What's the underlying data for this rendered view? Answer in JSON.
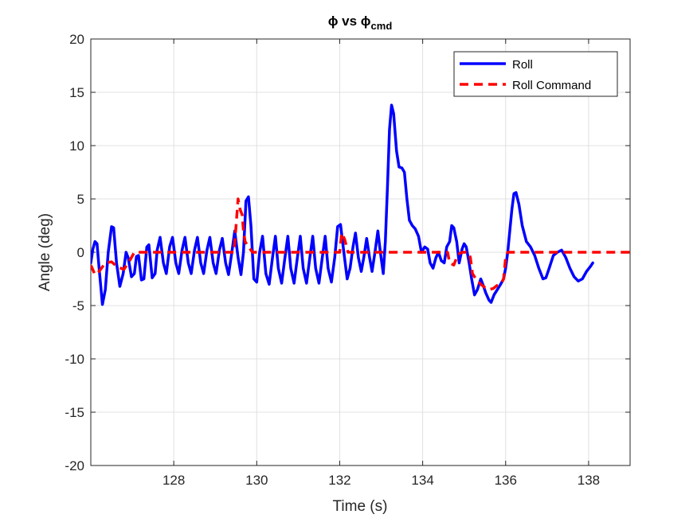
{
  "chart_data": {
    "type": "line",
    "title": "ϕ vs ϕ",
    "title_sub": "cmd",
    "xlabel": "Time (s)",
    "ylabel": "Angle (deg)",
    "xlim": [
      126,
      139
    ],
    "ylim": [
      -20,
      20
    ],
    "xticks": [
      128,
      130,
      132,
      134,
      136,
      138
    ],
    "yticks": [
      -20,
      -15,
      -10,
      -5,
      0,
      5,
      10,
      15,
      20
    ],
    "grid": true,
    "legend_position": "top-right",
    "series": [
      {
        "name": "Roll",
        "color": "#0000ff",
        "style": "solid",
        "points": [
          [
            126.0,
            -1.0
          ],
          [
            126.05,
            0.3
          ],
          [
            126.1,
            1.0
          ],
          [
            126.15,
            0.8
          ],
          [
            126.2,
            -1.5
          ],
          [
            126.28,
            -4.9
          ],
          [
            126.35,
            -3.5
          ],
          [
            126.42,
            0.0
          ],
          [
            126.5,
            2.4
          ],
          [
            126.55,
            2.3
          ],
          [
            126.62,
            -1.0
          ],
          [
            126.7,
            -3.2
          ],
          [
            126.78,
            -2.0
          ],
          [
            126.85,
            0.0
          ],
          [
            126.9,
            -0.5
          ],
          [
            126.98,
            -2.3
          ],
          [
            127.05,
            -2.0
          ],
          [
            127.1,
            -0.4
          ],
          [
            127.15,
            -0.3
          ],
          [
            127.22,
            -2.6
          ],
          [
            127.28,
            -2.5
          ],
          [
            127.35,
            0.5
          ],
          [
            127.4,
            0.7
          ],
          [
            127.48,
            -2.4
          ],
          [
            127.55,
            -2.0
          ],
          [
            127.6,
            0.2
          ],
          [
            127.67,
            1.4
          ],
          [
            127.75,
            -1.0
          ],
          [
            127.82,
            -2.0
          ],
          [
            127.9,
            0.5
          ],
          [
            127.97,
            1.4
          ],
          [
            128.05,
            -1.0
          ],
          [
            128.12,
            -2.0
          ],
          [
            128.2,
            0.2
          ],
          [
            128.27,
            1.4
          ],
          [
            128.35,
            -1.0
          ],
          [
            128.42,
            -2.0
          ],
          [
            128.5,
            0.2
          ],
          [
            128.57,
            1.4
          ],
          [
            128.65,
            -1.0
          ],
          [
            128.72,
            -2.0
          ],
          [
            128.8,
            0.2
          ],
          [
            128.87,
            1.4
          ],
          [
            128.95,
            -1.0
          ],
          [
            129.02,
            -2.0
          ],
          [
            129.1,
            0.2
          ],
          [
            129.17,
            1.3
          ],
          [
            129.25,
            -1.0
          ],
          [
            129.32,
            -2.1
          ],
          [
            129.4,
            0.0
          ],
          [
            129.47,
            2.0
          ],
          [
            129.55,
            -0.5
          ],
          [
            129.62,
            -2.1
          ],
          [
            129.68,
            0.0
          ],
          [
            129.74,
            4.8
          ],
          [
            129.8,
            5.2
          ],
          [
            129.86,
            2.5
          ],
          [
            129.93,
            -2.5
          ],
          [
            130.0,
            -2.8
          ],
          [
            130.07,
            0.0
          ],
          [
            130.14,
            1.5
          ],
          [
            130.22,
            -2.0
          ],
          [
            130.3,
            -3.0
          ],
          [
            130.38,
            -0.5
          ],
          [
            130.45,
            1.5
          ],
          [
            130.52,
            -1.5
          ],
          [
            130.6,
            -2.9
          ],
          [
            130.68,
            -0.5
          ],
          [
            130.75,
            1.5
          ],
          [
            130.82,
            -1.5
          ],
          [
            130.9,
            -2.9
          ],
          [
            130.98,
            -0.5
          ],
          [
            131.05,
            1.5
          ],
          [
            131.12,
            -1.5
          ],
          [
            131.2,
            -2.9
          ],
          [
            131.28,
            -0.5
          ],
          [
            131.35,
            1.5
          ],
          [
            131.42,
            -1.5
          ],
          [
            131.5,
            -2.9
          ],
          [
            131.58,
            -0.5
          ],
          [
            131.65,
            1.5
          ],
          [
            131.72,
            -1.5
          ],
          [
            131.8,
            -2.8
          ],
          [
            131.88,
            -0.5
          ],
          [
            131.95,
            2.4
          ],
          [
            132.02,
            2.6
          ],
          [
            132.1,
            0.0
          ],
          [
            132.18,
            -2.5
          ],
          [
            132.25,
            -1.5
          ],
          [
            132.32,
            0.5
          ],
          [
            132.38,
            1.8
          ],
          [
            132.45,
            -0.5
          ],
          [
            132.52,
            -1.8
          ],
          [
            132.58,
            -0.5
          ],
          [
            132.65,
            1.3
          ],
          [
            132.72,
            -0.5
          ],
          [
            132.78,
            -1.8
          ],
          [
            132.85,
            0.0
          ],
          [
            132.92,
            2.0
          ],
          [
            132.98,
            0.0
          ],
          [
            133.05,
            -2.0
          ],
          [
            133.1,
            1.0
          ],
          [
            133.15,
            6.0
          ],
          [
            133.2,
            11.5
          ],
          [
            133.25,
            13.8
          ],
          [
            133.3,
            13.0
          ],
          [
            133.37,
            9.5
          ],
          [
            133.43,
            8.0
          ],
          [
            133.5,
            7.9
          ],
          [
            133.56,
            7.5
          ],
          [
            133.62,
            5.0
          ],
          [
            133.68,
            3.0
          ],
          [
            133.75,
            2.5
          ],
          [
            133.82,
            2.2
          ],
          [
            133.9,
            1.5
          ],
          [
            133.97,
            0.0
          ],
          [
            134.05,
            0.5
          ],
          [
            134.12,
            0.3
          ],
          [
            134.18,
            -1.0
          ],
          [
            134.25,
            -1.5
          ],
          [
            134.32,
            -0.5
          ],
          [
            134.38,
            0.0
          ],
          [
            134.45,
            -0.8
          ],
          [
            134.52,
            -1.0
          ],
          [
            134.58,
            0.5
          ],
          [
            134.65,
            1.0
          ],
          [
            134.7,
            2.5
          ],
          [
            134.75,
            2.3
          ],
          [
            134.82,
            1.0
          ],
          [
            134.88,
            -1.0
          ],
          [
            134.95,
            0.3
          ],
          [
            135.0,
            0.8
          ],
          [
            135.05,
            0.5
          ],
          [
            135.12,
            -1.0
          ],
          [
            135.18,
            -2.5
          ],
          [
            135.25,
            -4.0
          ],
          [
            135.32,
            -3.5
          ],
          [
            135.4,
            -2.5
          ],
          [
            135.45,
            -3.0
          ],
          [
            135.52,
            -3.8
          ],
          [
            135.6,
            -4.5
          ],
          [
            135.65,
            -4.7
          ],
          [
            135.72,
            -4.0
          ],
          [
            135.8,
            -3.5
          ],
          [
            135.88,
            -3.0
          ],
          [
            135.95,
            -2.5
          ],
          [
            136.0,
            -1.5
          ],
          [
            136.05,
            0.0
          ],
          [
            136.1,
            2.0
          ],
          [
            136.15,
            4.0
          ],
          [
            136.2,
            5.5
          ],
          [
            136.25,
            5.6
          ],
          [
            136.32,
            4.5
          ],
          [
            136.4,
            2.5
          ],
          [
            136.5,
            1.0
          ],
          [
            136.6,
            0.5
          ],
          [
            136.7,
            -0.3
          ],
          [
            136.8,
            -1.5
          ],
          [
            136.9,
            -2.5
          ],
          [
            136.97,
            -2.4
          ],
          [
            137.05,
            -1.5
          ],
          [
            137.15,
            -0.3
          ],
          [
            137.25,
            0.0
          ],
          [
            137.35,
            0.2
          ],
          [
            137.45,
            -0.5
          ],
          [
            137.55,
            -1.5
          ],
          [
            137.65,
            -2.3
          ],
          [
            137.75,
            -2.7
          ],
          [
            137.85,
            -2.5
          ],
          [
            137.95,
            -1.8
          ],
          [
            138.05,
            -1.3
          ],
          [
            138.1,
            -1.0
          ]
        ]
      },
      {
        "name": "Roll Command",
        "color": "#ff0000",
        "style": "dashed",
        "points": [
          [
            126.0,
            -1.2
          ],
          [
            126.1,
            -2.1
          ],
          [
            126.2,
            -1.8
          ],
          [
            126.35,
            -1.0
          ],
          [
            126.5,
            -0.9
          ],
          [
            126.65,
            -1.4
          ],
          [
            126.8,
            -1.6
          ],
          [
            126.95,
            -0.7
          ],
          [
            127.05,
            0.0
          ],
          [
            129.35,
            0.0
          ],
          [
            129.45,
            0.0
          ],
          [
            129.5,
            2.4
          ],
          [
            129.55,
            5.0
          ],
          [
            129.6,
            4.0
          ],
          [
            129.65,
            3.5
          ],
          [
            129.68,
            2.0
          ],
          [
            129.72,
            1.0
          ],
          [
            129.78,
            0.6
          ],
          [
            129.9,
            0.0
          ],
          [
            132.0,
            0.0
          ],
          [
            132.05,
            1.8
          ],
          [
            132.12,
            1.2
          ],
          [
            132.2,
            0.0
          ],
          [
            134.6,
            0.0
          ],
          [
            134.65,
            -1.0
          ],
          [
            134.75,
            -1.2
          ],
          [
            134.85,
            -0.2
          ],
          [
            134.95,
            0.0
          ],
          [
            135.1,
            0.0
          ],
          [
            135.15,
            -0.5
          ],
          [
            135.2,
            -2.0
          ],
          [
            135.3,
            -2.6
          ],
          [
            135.4,
            -3.0
          ],
          [
            135.5,
            -3.3
          ],
          [
            135.6,
            -3.5
          ],
          [
            135.7,
            -3.4
          ],
          [
            135.8,
            -3.1
          ],
          [
            135.9,
            -2.9
          ],
          [
            135.95,
            -2.5
          ],
          [
            136.0,
            -0.5
          ],
          [
            136.05,
            0.0
          ],
          [
            136.1,
            0.0
          ],
          [
            139.0,
            0.0
          ]
        ]
      }
    ]
  }
}
